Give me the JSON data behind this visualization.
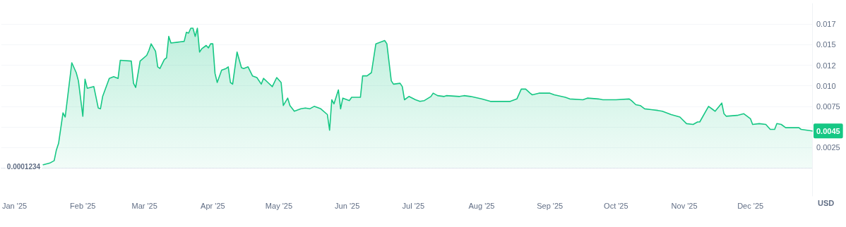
{
  "chart_data": {
    "type": "area",
    "ylabel": "USD",
    "x": [
      "2025-01-14",
      "2025-01-17",
      "2025-01-19",
      "2025-01-20",
      "2025-01-21",
      "2025-01-23",
      "2025-01-24",
      "2025-01-27",
      "2025-01-29",
      "2025-01-30",
      "2025-02-01",
      "2025-02-02",
      "2025-02-03",
      "2025-02-06",
      "2025-02-08",
      "2025-02-09",
      "2025-02-10",
      "2025-02-13",
      "2025-02-15",
      "2025-02-17",
      "2025-02-18",
      "2025-02-23",
      "2025-02-24",
      "2025-02-25",
      "2025-02-27",
      "2025-03-02",
      "2025-03-03",
      "2025-03-04",
      "2025-03-06",
      "2025-03-07",
      "2025-03-08",
      "2025-03-10",
      "2025-03-11",
      "2025-03-12",
      "2025-03-13",
      "2025-03-16",
      "2025-03-19",
      "2025-03-20",
      "2025-03-21",
      "2025-03-22",
      "2025-03-23",
      "2025-03-24",
      "2025-03-25",
      "2025-03-26",
      "2025-03-27",
      "2025-03-29",
      "2025-03-30",
      "2025-03-31",
      "2025-04-01",
      "2025-04-02",
      "2025-04-03",
      "2025-04-05",
      "2025-04-07",
      "2025-04-08",
      "2025-04-09",
      "2025-04-10",
      "2025-04-12",
      "2025-04-14",
      "2025-04-15",
      "2025-04-17",
      "2025-04-19",
      "2025-04-21",
      "2025-04-23",
      "2025-04-24",
      "2025-04-26",
      "2025-04-28",
      "2025-04-30",
      "2025-05-02",
      "2025-05-03",
      "2025-05-05",
      "2025-05-06",
      "2025-05-08",
      "2025-05-11",
      "2025-05-13",
      "2025-05-15",
      "2025-05-17",
      "2025-05-20",
      "2025-05-23",
      "2025-05-24",
      "2025-05-25",
      "2025-05-26",
      "2025-05-28",
      "2025-05-29",
      "2025-05-30",
      "2025-06-02",
      "2025-06-03",
      "2025-06-07",
      "2025-06-08",
      "2025-06-10",
      "2025-06-12",
      "2025-06-14",
      "2025-06-18",
      "2025-06-19",
      "2025-06-21",
      "2025-06-22",
      "2025-06-25",
      "2025-06-26",
      "2025-06-27",
      "2025-06-29",
      "2025-07-02",
      "2025-07-04",
      "2025-07-06",
      "2025-07-09",
      "2025-07-10",
      "2025-07-12",
      "2025-07-15",
      "2025-07-16",
      "2025-07-22",
      "2025-07-24",
      "2025-07-27",
      "2025-08-01",
      "2025-08-05",
      "2025-08-14",
      "2025-08-17",
      "2025-08-19",
      "2025-08-21",
      "2025-08-23",
      "2025-08-24",
      "2025-08-27",
      "2025-09-01",
      "2025-09-03",
      "2025-09-08",
      "2025-09-10",
      "2025-09-16",
      "2025-09-18",
      "2025-09-23",
      "2025-09-25",
      "2025-10-01",
      "2025-10-07",
      "2025-10-08",
      "2025-10-10",
      "2025-10-12",
      "2025-10-14",
      "2025-10-17",
      "2025-10-20",
      "2025-10-22",
      "2025-10-26",
      "2025-10-30",
      "2025-11-02",
      "2025-11-05",
      "2025-11-07",
      "2025-11-08",
      "2025-11-12",
      "2025-11-14",
      "2025-11-15",
      "2025-11-18",
      "2025-11-19",
      "2025-11-20",
      "2025-11-25",
      "2025-11-28",
      "2025-12-01",
      "2025-12-02",
      "2025-12-05",
      "2025-12-08",
      "2025-12-10",
      "2025-12-12",
      "2025-12-13",
      "2025-12-15",
      "2025-12-17",
      "2025-12-23",
      "2025-12-24",
      "2025-12-29"
    ],
    "series": [
      {
        "color": "#16c784",
        "values": [
          0.0004,
          0.0006,
          0.0009,
          0.0022,
          0.003,
          0.0067,
          0.0062,
          0.0128,
          0.0116,
          0.0106,
          0.0063,
          0.0108,
          0.0097,
          0.0099,
          0.0073,
          0.0072,
          0.0087,
          0.0109,
          0.0111,
          0.0109,
          0.0131,
          0.013,
          0.0103,
          0.0098,
          0.013,
          0.0137,
          0.0143,
          0.0151,
          0.0142,
          0.0123,
          0.0121,
          0.0132,
          0.0134,
          0.016,
          0.0152,
          0.0153,
          0.0154,
          0.0165,
          0.0164,
          0.017,
          0.017,
          0.016,
          0.017,
          0.0141,
          0.0145,
          0.0149,
          0.0146,
          0.0151,
          0.0151,
          0.0115,
          0.0104,
          0.0119,
          0.0121,
          0.0123,
          0.0104,
          0.0102,
          0.0141,
          0.0122,
          0.0121,
          0.0123,
          0.0112,
          0.011,
          0.0102,
          0.0109,
          0.0104,
          0.0099,
          0.011,
          0.0104,
          0.0076,
          0.0085,
          0.0076,
          0.0069,
          0.0072,
          0.0073,
          0.0072,
          0.0075,
          0.0072,
          0.0065,
          0.0046,
          0.0083,
          0.0078,
          0.0095,
          0.0072,
          0.0085,
          0.0082,
          0.0086,
          0.0086,
          0.0112,
          0.0112,
          0.0116,
          0.0151,
          0.0155,
          0.0151,
          0.0106,
          0.0102,
          0.0103,
          0.0099,
          0.0083,
          0.0087,
          0.0083,
          0.0081,
          0.0082,
          0.0087,
          0.0091,
          0.0088,
          0.0087,
          0.0088,
          0.0087,
          0.0088,
          0.0087,
          0.0084,
          0.0081,
          0.0081,
          0.0084,
          0.0096,
          0.0096,
          0.0091,
          0.0089,
          0.0091,
          0.0091,
          0.0089,
          0.0086,
          0.0084,
          0.0083,
          0.0085,
          0.0084,
          0.0083,
          0.0083,
          0.0084,
          0.0082,
          0.0077,
          0.0076,
          0.0072,
          0.0071,
          0.007,
          0.0069,
          0.0065,
          0.0062,
          0.0054,
          0.0053,
          0.0056,
          0.0056,
          0.0075,
          0.0071,
          0.0069,
          0.0079,
          0.0066,
          0.0063,
          0.0064,
          0.0066,
          0.006,
          0.0053,
          0.0054,
          0.0053,
          0.0047,
          0.0047,
          0.0054,
          0.0053,
          0.0049,
          0.0049,
          0.0047,
          0.0045
        ]
      }
    ],
    "xlim": [
      "2024-12-26",
      "2025-12-29"
    ],
    "xticks": [
      {
        "value": "2025-01-01",
        "label": "Jan '25"
      },
      {
        "value": "2025-02-01",
        "label": "Feb '25"
      },
      {
        "value": "2025-03-01",
        "label": "Mar '25"
      },
      {
        "value": "2025-04-01",
        "label": "Apr '25"
      },
      {
        "value": "2025-05-01",
        "label": "May '25"
      },
      {
        "value": "2025-06-01",
        "label": "Jun '25"
      },
      {
        "value": "2025-07-01",
        "label": "Jul '25"
      },
      {
        "value": "2025-08-01",
        "label": "Aug '25"
      },
      {
        "value": "2025-09-01",
        "label": "Sep '25"
      },
      {
        "value": "2025-10-01",
        "label": "Oct '25"
      },
      {
        "value": "2025-11-01",
        "label": "Nov '25"
      },
      {
        "value": "2025-12-01",
        "label": "Dec '25"
      }
    ],
    "ylim": [
      -0.0034,
      0.02
    ],
    "yticks": [
      0.0025,
      {
        "value": 0.005,
        "label": null
      },
      0.0075,
      {
        "value": 0.01,
        "label": "0.010"
      },
      {
        "value": 0.0125,
        "label": "0.012"
      },
      0.015,
      {
        "value": 0.0175,
        "label": "0.017"
      }
    ],
    "ref_lines": [
      {
        "axis": "y",
        "value": 0.0001234,
        "label": "0.0001234",
        "color": "#cfd6e4",
        "line_style": "dotted"
      }
    ],
    "annotations": [
      {
        "text": "0.0045",
        "x": "2025-12-29",
        "y": 0.0045
      }
    ],
    "grid": "y",
    "marker": "none",
    "line_style": "solid"
  }
}
